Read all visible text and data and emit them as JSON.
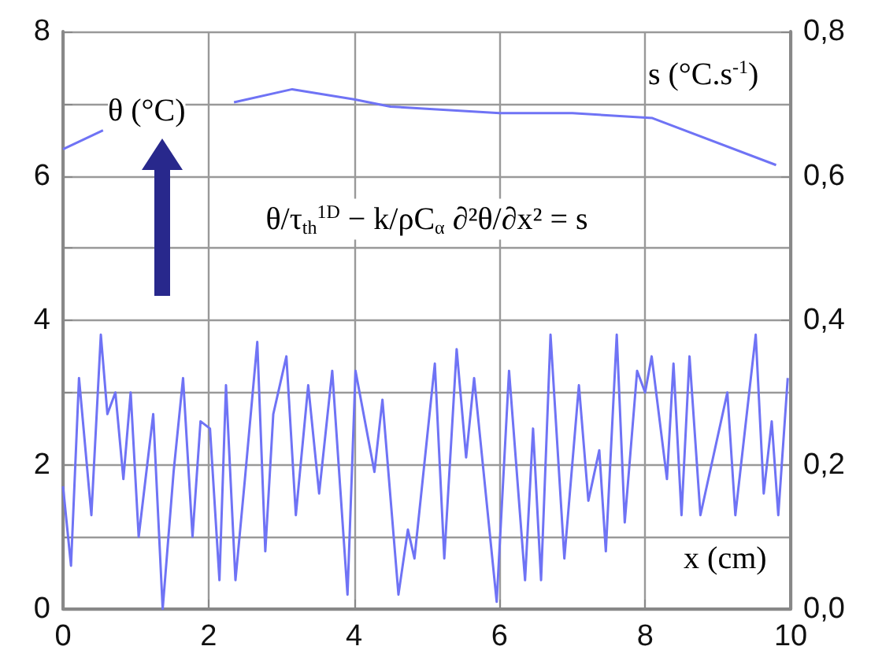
{
  "chart_data": {
    "type": "line",
    "xlabel": "x (cm)",
    "ylabel": "θ (°C)",
    "y2label": "s (°C.s$^{-1}$)",
    "annotations": [
      "θ/τ$_{th}$$^{1D}$ − k/ρC$_{α}$ ∂²θ/∂x² = s"
    ],
    "xlim": [
      0,
      10
    ],
    "xticks": [
      0,
      2,
      4,
      6,
      8,
      10
    ],
    "ylim": [
      0,
      8
    ],
    "yticks": [
      0,
      {
        "value": 1,
        "label": null
      },
      2,
      {
        "value": 3,
        "label": null
      },
      4,
      {
        "value": 5,
        "label": null
      },
      6,
      {
        "value": 7,
        "label": null
      },
      8
    ],
    "y2lim": [
      0,
      0.8
    ],
    "y2ticks": [
      {
        "value": 0,
        "label": "0,0"
      },
      {
        "value": 0.2,
        "label": "0,2"
      },
      {
        "value": 0.4,
        "label": "0,4"
      },
      {
        "value": 0.6,
        "label": "0,6"
      },
      {
        "value": 0.8,
        "label": "0,8"
      }
    ],
    "grid": true,
    "marker": "none",
    "line_style": "solid",
    "series": [
      {
        "color": "#6f73f5",
        "x": [
          0,
          0.55,
          1.5,
          2.35,
          3.15,
          4,
          4.5,
          6,
          7,
          8.1,
          9.8
        ],
        "values": [
          6.37,
          6.63,
          null,
          7.02,
          7.2,
          7.06,
          6.96,
          6.87,
          6.87,
          6.8,
          6.15
        ]
      },
      {
        "color": "#6f73f5",
        "axis": "y2",
        "x": [
          0,
          0.11,
          0.22,
          0.39,
          0.52,
          0.61,
          0.72,
          0.83,
          0.93,
          1.04,
          1.24,
          1.37,
          1.52,
          1.65,
          1.78,
          1.89,
          2.02,
          2.15,
          2.24,
          2.37,
          2.5,
          2.67,
          2.78,
          2.89,
          3.07,
          3.2,
          3.37,
          3.52,
          3.7,
          3.91,
          4.02,
          4.28,
          4.39,
          4.61,
          4.74,
          4.83,
          5.11,
          5.24,
          5.41,
          5.54,
          5.65,
          5.96,
          6.13,
          6.35,
          6.46,
          6.57,
          6.7,
          6.89,
          7.09,
          7.22,
          7.37,
          7.46,
          7.61,
          7.72,
          7.89,
          8.0,
          8.09,
          8.3,
          8.39,
          8.5,
          8.61,
          8.76,
          9.13,
          9.24,
          9.52,
          9.63,
          9.74,
          9.83,
          9.96
        ],
        "values": [
          0.17,
          0.06,
          0.32,
          0.13,
          0.38,
          0.27,
          0.3,
          0.18,
          0.3,
          0.1,
          0.27,
          0.0,
          0.19,
          0.32,
          0.1,
          0.26,
          0.25,
          0.04,
          0.31,
          0.04,
          0.18,
          0.37,
          0.08,
          0.27,
          0.35,
          0.13,
          0.31,
          0.16,
          0.33,
          0.02,
          0.33,
          0.19,
          0.29,
          0.02,
          0.11,
          0.07,
          0.34,
          0.07,
          0.36,
          0.21,
          0.32,
          0.01,
          0.33,
          0.04,
          0.25,
          0.04,
          0.38,
          0.07,
          0.31,
          0.15,
          0.22,
          0.08,
          0.38,
          0.12,
          0.33,
          0.3,
          0.35,
          0.18,
          0.34,
          0.13,
          0.35,
          0.13,
          0.3,
          0.13,
          0.38,
          0.16,
          0.26,
          0.13,
          0.32
        ]
      }
    ]
  }
}
